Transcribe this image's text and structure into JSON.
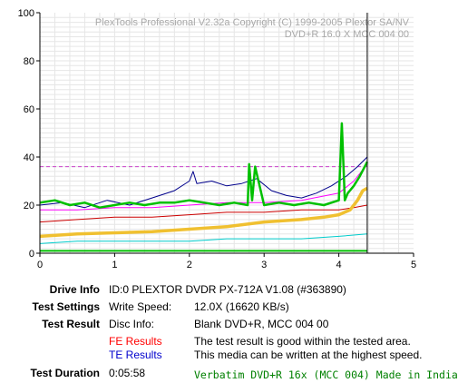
{
  "chart_data": {
    "type": "line",
    "watermark_line1": "PlexTools Professional V2.32a Copyright (C) 1999-2005 Plextor SA/NV",
    "watermark_line2": "DVD+R    16.0 X    MCC 004 00",
    "xlim": [
      0,
      5
    ],
    "ylim": [
      0,
      100
    ],
    "x_ticks": [
      "0",
      "1",
      "2",
      "3",
      "4",
      "5"
    ],
    "y_ticks": [
      "0",
      "20",
      "40",
      "60",
      "80",
      "100"
    ],
    "grid": true,
    "end_marker_x": 4.38,
    "dashed_reference_y": 36,
    "colors": {
      "pi_failures": "#00c000",
      "pi_errors_max": "#00008b",
      "pi_errors_avg": "#ff00ff",
      "jitter": "#f0c030",
      "beta": "#cc0000",
      "po_failures": "#00cccc",
      "dashed_reference": "#cc44cc",
      "end_marker": "#000000"
    },
    "series": [
      {
        "key": "pi_failures",
        "x": [
          0,
          0.2,
          0.4,
          0.6,
          0.8,
          1.0,
          1.2,
          1.4,
          1.6,
          1.8,
          2.0,
          2.2,
          2.4,
          2.6,
          2.78,
          2.8,
          2.84,
          2.88,
          3.0,
          3.2,
          3.4,
          3.6,
          3.8,
          4.0,
          4.04,
          4.08,
          4.12,
          4.2,
          4.28,
          4.38
        ],
        "y": [
          21,
          22,
          20,
          21,
          19,
          20,
          21,
          20,
          21,
          21,
          22,
          21,
          20,
          21,
          20,
          37,
          22,
          36,
          20,
          21,
          20,
          21,
          20,
          22,
          54,
          22,
          25,
          28,
          32,
          38
        ]
      },
      {
        "key": "pi_errors_max",
        "x": [
          0,
          0.3,
          0.6,
          0.9,
          1.2,
          1.5,
          1.8,
          2.0,
          2.05,
          2.1,
          2.3,
          2.5,
          2.7,
          2.9,
          3.1,
          3.3,
          3.5,
          3.7,
          3.9,
          4.1,
          4.25,
          4.38
        ],
        "y": [
          20,
          21,
          19,
          22,
          20,
          23,
          26,
          30,
          34,
          29,
          30,
          28,
          29,
          31,
          26,
          24,
          23,
          25,
          28,
          32,
          36,
          40
        ]
      },
      {
        "key": "pi_errors_avg",
        "x": [
          0,
          0.5,
          1.0,
          1.5,
          2.0,
          2.5,
          3.0,
          3.5,
          4.0,
          4.2,
          4.38
        ],
        "y": [
          18,
          18,
          19,
          19,
          20,
          21,
          21,
          22,
          25,
          30,
          37
        ]
      },
      {
        "key": "jitter",
        "x": [
          0,
          0.5,
          1.0,
          1.5,
          2.0,
          2.5,
          3.0,
          3.5,
          3.8,
          4.0,
          4.15,
          4.25,
          4.32,
          4.38
        ],
        "y": [
          7,
          8,
          8.5,
          9,
          10,
          11,
          13,
          14,
          15,
          16,
          18,
          22,
          26,
          27
        ]
      },
      {
        "key": "beta",
        "x": [
          0,
          0.5,
          1.0,
          1.5,
          2.0,
          2.5,
          3.0,
          3.5,
          4.0,
          4.2,
          4.38
        ],
        "y": [
          13,
          14,
          15,
          15,
          16,
          17,
          17,
          18,
          18,
          19,
          20
        ]
      },
      {
        "key": "po_failures",
        "x": [
          0,
          0.5,
          1.0,
          1.5,
          2.0,
          2.5,
          3.0,
          3.5,
          4.0,
          4.38
        ],
        "y": [
          4,
          5,
          5,
          5,
          5,
          6,
          6,
          6,
          7,
          8
        ]
      },
      {
        "key": "po_low",
        "x": [
          0,
          4.38
        ],
        "y": [
          1,
          1
        ]
      }
    ]
  },
  "info": {
    "drive_info_label": "Drive Info",
    "drive_info_value": "ID:0 PLEXTOR DVDR PX-712A V1.08 (#363890)",
    "test_settings_label": "Test Settings",
    "write_speed_label": "Write Speed:",
    "write_speed_value": "12.0X (16620 KB/s)",
    "test_result_label": "Test Result",
    "disc_info_label": "Disc Info:",
    "disc_info_value": "Blank DVD+R, MCC 004 00",
    "fe_results_label": "FE Results",
    "fe_results_value": "The test result is good within the tested area.",
    "te_results_label": "TE Results",
    "te_results_value": "This media can be written at the highest speed.",
    "test_duration_label": "Test Duration",
    "test_duration_value": "0:05:58",
    "media_note": "Verbatim DVD+R 16x (MCC 004) Made in India"
  }
}
